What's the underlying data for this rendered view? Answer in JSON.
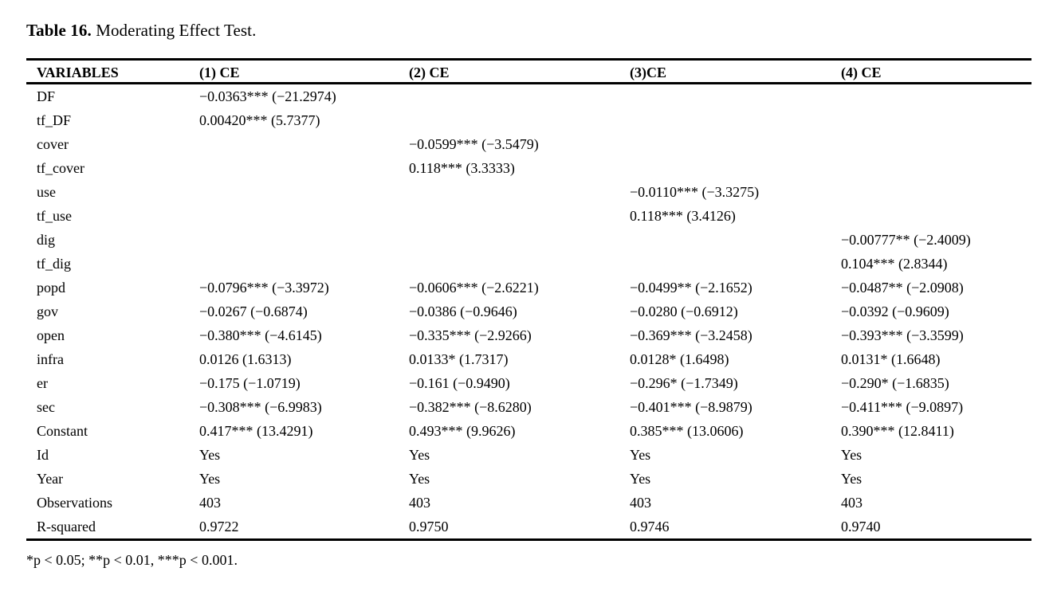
{
  "title": {
    "label": "Table 16.",
    "text": "Moderating Effect Test."
  },
  "table": {
    "columns": [
      "VARIABLES",
      "(1) CE",
      "(2) CE",
      "(3)CE",
      "(4) CE"
    ],
    "rows": [
      {
        "variable": "DF",
        "values": [
          "−0.0363*** (−21.2974)",
          "",
          "",
          ""
        ]
      },
      {
        "variable": "tf_DF",
        "values": [
          "0.00420*** (5.7377)",
          "",
          "",
          ""
        ]
      },
      {
        "variable": "cover",
        "values": [
          "",
          "−0.0599*** (−3.5479)",
          "",
          ""
        ]
      },
      {
        "variable": "tf_cover",
        "values": [
          "",
          "0.118*** (3.3333)",
          "",
          ""
        ]
      },
      {
        "variable": "use",
        "values": [
          "",
          "",
          "−0.0110*** (−3.3275)",
          ""
        ]
      },
      {
        "variable": "tf_use",
        "values": [
          "",
          "",
          "0.118*** (3.4126)",
          ""
        ]
      },
      {
        "variable": "dig",
        "values": [
          "",
          "",
          "",
          "−0.00777** (−2.4009)"
        ]
      },
      {
        "variable": "tf_dig",
        "values": [
          "",
          "",
          "",
          "0.104*** (2.8344)"
        ]
      },
      {
        "variable": "popd",
        "values": [
          "−0.0796*** (−3.3972)",
          "−0.0606*** (−2.6221)",
          "−0.0499** (−2.1652)",
          "−0.0487** (−2.0908)"
        ]
      },
      {
        "variable": "gov",
        "values": [
          "−0.0267 (−0.6874)",
          "−0.0386 (−0.9646)",
          "−0.0280 (−0.6912)",
          "−0.0392 (−0.9609)"
        ]
      },
      {
        "variable": "open",
        "values": [
          "−0.380*** (−4.6145)",
          "−0.335*** (−2.9266)",
          "−0.369*** (−3.2458)",
          "−0.393*** (−3.3599)"
        ]
      },
      {
        "variable": "infra",
        "values": [
          "0.0126 (1.6313)",
          "0.0133* (1.7317)",
          "0.0128* (1.6498)",
          "0.0131* (1.6648)"
        ]
      },
      {
        "variable": "er",
        "values": [
          "−0.175 (−1.0719)",
          "−0.161 (−0.9490)",
          "−0.296* (−1.7349)",
          "−0.290* (−1.6835)"
        ]
      },
      {
        "variable": "sec",
        "values": [
          "−0.308*** (−6.9983)",
          "−0.382*** (−8.6280)",
          "−0.401*** (−8.9879)",
          "−0.411*** (−9.0897)"
        ]
      },
      {
        "variable": "Constant",
        "values": [
          "0.417*** (13.4291)",
          "0.493*** (9.9626)",
          "0.385*** (13.0606)",
          "0.390*** (12.8411)"
        ]
      },
      {
        "variable": "Id",
        "values": [
          "Yes",
          "Yes",
          "Yes",
          "Yes"
        ]
      },
      {
        "variable": "Year",
        "values": [
          "Yes",
          "Yes",
          "Yes",
          "Yes"
        ]
      },
      {
        "variable": "Observations",
        "values": [
          "403",
          "403",
          "403",
          "403"
        ]
      },
      {
        "variable": "R-squared",
        "values": [
          "0.9722",
          "0.9750",
          "0.9746",
          "0.9740"
        ]
      }
    ]
  },
  "footnote": "*p < 0.05; **p < 0.01, ***p < 0.001.",
  "colors": {
    "text": "#000000",
    "background": "#ffffff",
    "rule": "#000000"
  }
}
